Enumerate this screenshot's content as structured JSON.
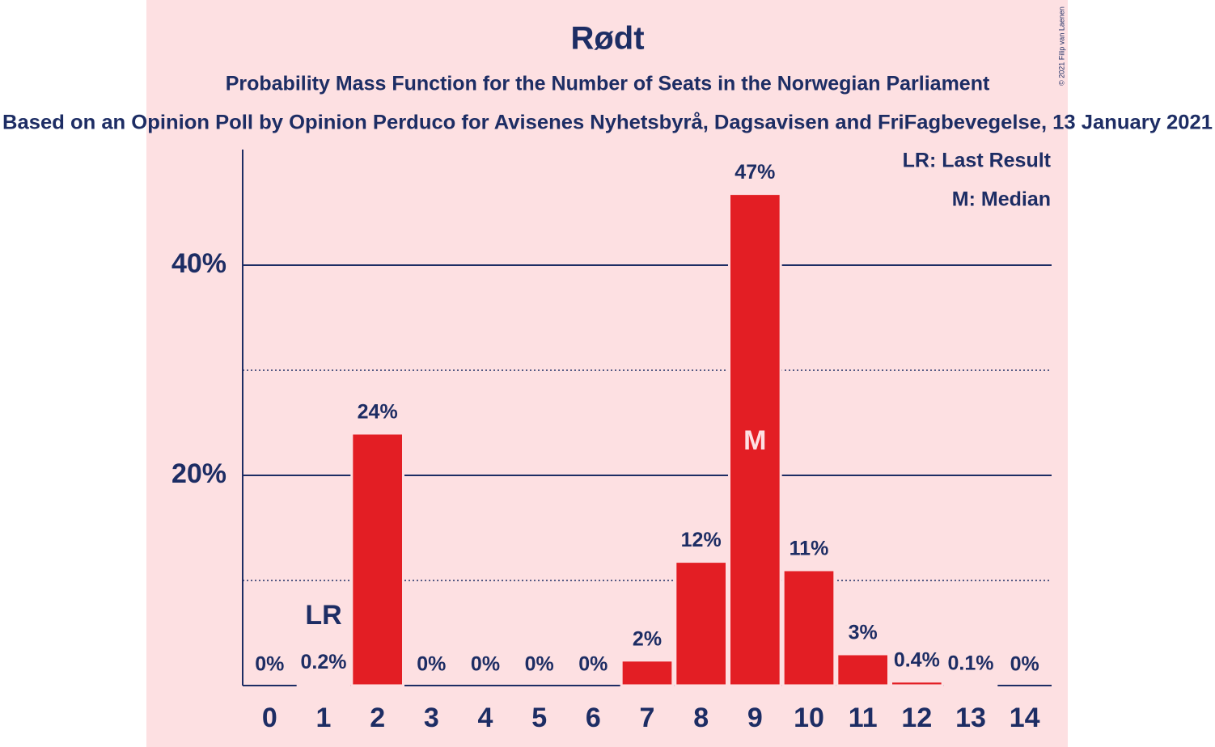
{
  "chart_data": {
    "type": "bar",
    "title": "Rødt",
    "subtitle": "Probability Mass Function for the Number of Seats in the Norwegian Parliament",
    "source_line": "Based on an Opinion Poll by Opinion Perduco for Avisenes Nyhetsbyrå, Dagsavisen and FriFagbevegelse, 13 January 2021",
    "copyright": "© 2021 Filip van Laenen",
    "categories": [
      0,
      1,
      2,
      3,
      4,
      5,
      6,
      7,
      8,
      9,
      10,
      11,
      12,
      13,
      14
    ],
    "values": [
      0,
      0.2,
      24,
      0,
      0,
      0,
      0,
      2.4,
      11.8,
      46.8,
      11,
      3,
      0.4,
      0.1,
      0
    ],
    "value_labels": [
      "0%",
      "0.2%",
      "24%",
      "0%",
      "0%",
      "0%",
      "0%",
      "2%",
      "12%",
      "47%",
      "11%",
      "3%",
      "0.4%",
      "0.1%",
      "0%"
    ],
    "color": "#e31e24",
    "ylim": [
      0,
      51
    ],
    "yticks": [
      {
        "value": 20,
        "label": "20%"
      },
      {
        "value": 40,
        "label": "40%"
      }
    ],
    "minor_yticks": [
      10,
      30
    ],
    "grid": true,
    "last_result": {
      "label": "LR",
      "seats": 1
    },
    "median": {
      "label": "M",
      "seats": 9
    },
    "legend": [
      "LR: Last Result",
      "M: Median"
    ]
  }
}
